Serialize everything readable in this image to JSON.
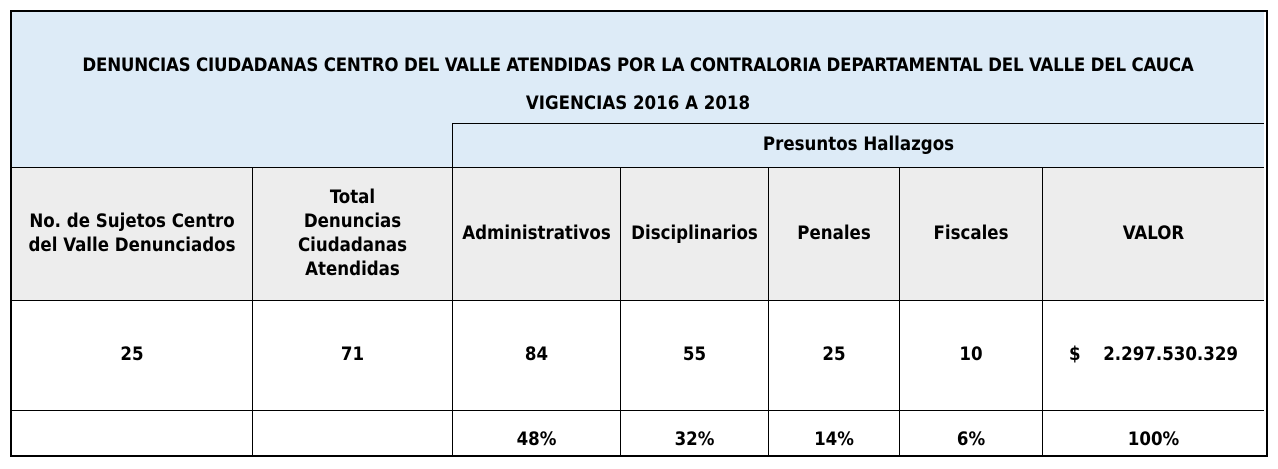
{
  "title": {
    "line1": "DENUNCIAS CIUDADANAS CENTRO  DEL VALLE ATENDIDAS POR LA CONTRALORIA DEPARTAMENTAL DEL VALLE DEL CAUCA",
    "line2": "VIGENCIAS 2016 A 2018"
  },
  "group_header": "Presuntos Hallazgos",
  "columns": [
    "No. de Sujetos Centro del Valle Denunciados",
    "Total Denuncias Ciudadanas Atendidas",
    "Administrativos",
    "Disciplinarios",
    "Penales",
    "Fiscales",
    "VALOR"
  ],
  "values": {
    "sujetos": "25",
    "total": "71",
    "administrativos": "84",
    "disciplinarios": "55",
    "penales": "25",
    "fiscales": "10",
    "currency": "$",
    "valor": "2.297.530.329"
  },
  "percentages": {
    "administrativos": "48%",
    "disciplinarios": "32%",
    "penales": "14%",
    "fiscales": "6%",
    "valor": "100%"
  },
  "colors": {
    "header_bg": "#ddebf7",
    "column_header_bg": "#ededed"
  }
}
